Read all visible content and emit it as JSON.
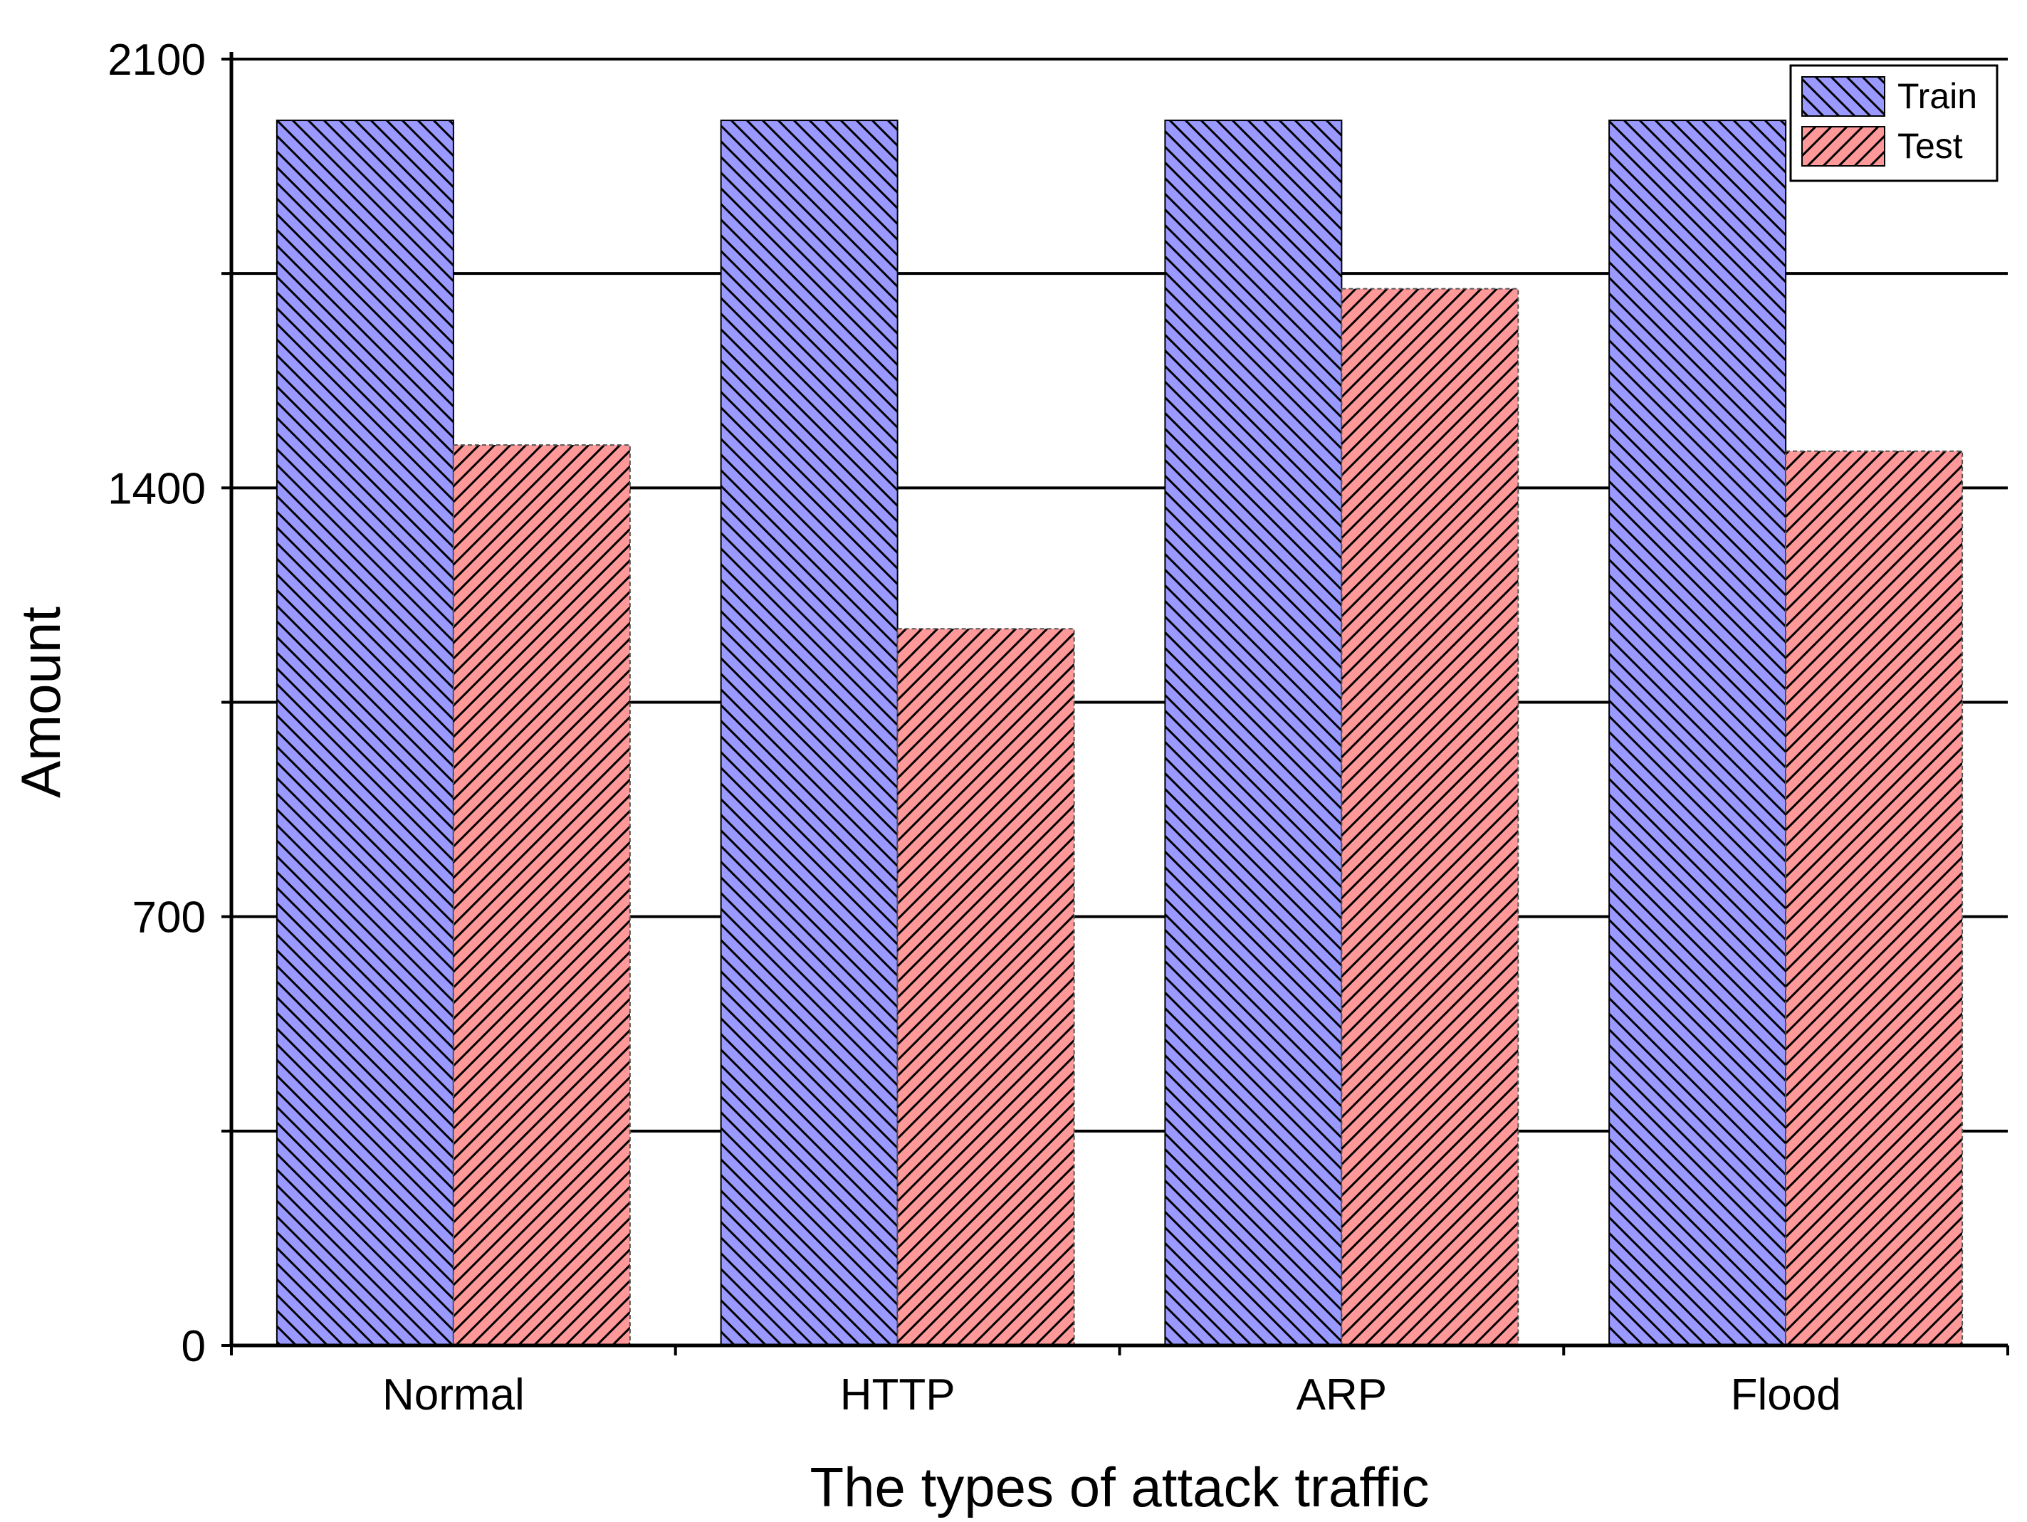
{
  "chart_data": {
    "type": "bar",
    "xlabel": "The types of attack traffic",
    "ylabel": "Amount",
    "categories": [
      "Normal",
      "HTTP",
      "ARP",
      "Flood"
    ],
    "ylim": [
      0,
      2100
    ],
    "yticks": [
      0,
      700,
      1400,
      2100
    ],
    "minor_ytick_step": 350,
    "grid": true,
    "legend_position": "top-right",
    "series": [
      {
        "name": "Train",
        "values": [
          2000,
          2000,
          2000,
          2000
        ],
        "color": "#9999ff"
      },
      {
        "name": "Test",
        "values": [
          1470,
          1170,
          1725,
          1460
        ],
        "color": "#ff9999"
      }
    ]
  }
}
